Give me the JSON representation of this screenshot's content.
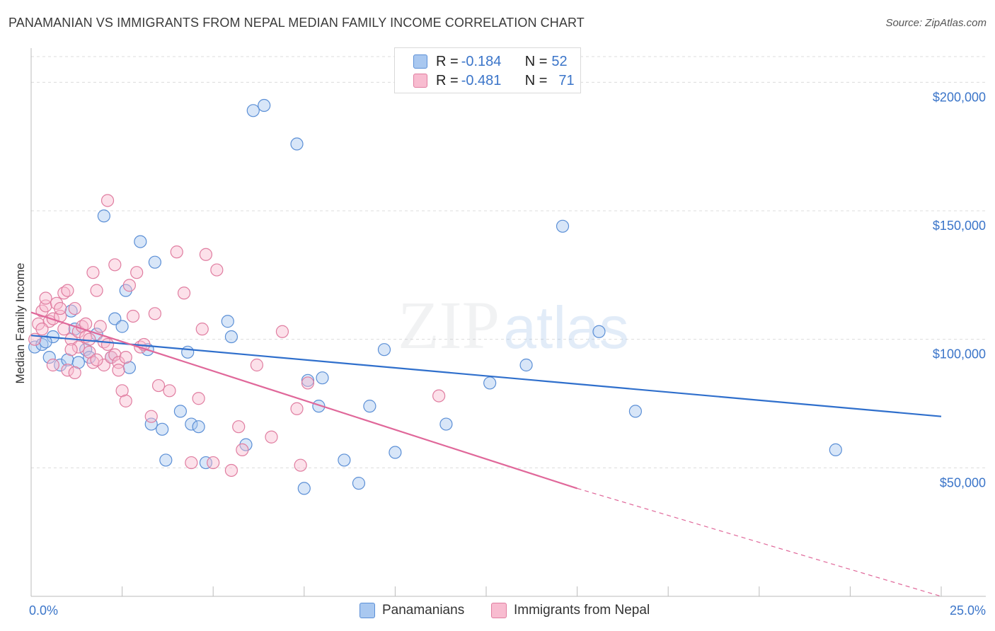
{
  "title": "PANAMANIAN VS IMMIGRANTS FROM NEPAL MEDIAN FAMILY INCOME CORRELATION CHART",
  "source": "Source: ZipAtlas.com",
  "watermark": {
    "zip": "ZIP",
    "atlas": "atlas"
  },
  "legend_box": {
    "rows": [
      {
        "r_label": "R = ",
        "r_value": "-0.184",
        "n_label": "N = ",
        "n_value": "52",
        "color": "#a9c8f0",
        "border": "#5b8fd6"
      },
      {
        "r_label": "R = ",
        "r_value": "-0.481",
        "n_label": "N = ",
        "n_value": "71",
        "color": "#f8bcd0",
        "border": "#e07da0"
      }
    ]
  },
  "bottom_legend": [
    {
      "label": "Panamanians",
      "color": "#a9c8f0",
      "border": "#5b8fd6"
    },
    {
      "label": "Immigrants from Nepal",
      "color": "#f8bcd0",
      "border": "#e07da0"
    }
  ],
  "chart_data": {
    "type": "scatter",
    "title": "PANAMANIAN VS IMMIGRANTS FROM NEPAL MEDIAN FAMILY INCOME CORRELATION CHART",
    "xlabel": "",
    "ylabel": "Median Family Income",
    "xlim": [
      0,
      25
    ],
    "ylim": [
      0,
      210000
    ],
    "x_tick_labels": [
      "0.0%",
      "25.0%"
    ],
    "y_ticks": [
      50000,
      100000,
      150000,
      200000
    ],
    "y_tick_labels": [
      "$50,000",
      "$100,000",
      "$150,000",
      "$200,000"
    ],
    "grid": true,
    "series": [
      {
        "name": "Panamanians",
        "color": "#5b8fd6",
        "fill": "rgba(169,200,240,0.45)",
        "trend": {
          "x": [
            0,
            25
          ],
          "y": [
            101500,
            70000
          ],
          "color": "#2f6fcc"
        },
        "points": [
          [
            0.1,
            97000
          ],
          [
            0.3,
            98000
          ],
          [
            0.5,
            93000
          ],
          [
            0.6,
            101000
          ],
          [
            0.8,
            90000
          ],
          [
            1.0,
            92000
          ],
          [
            1.1,
            111000
          ],
          [
            1.2,
            104000
          ],
          [
            1.3,
            91000
          ],
          [
            1.5,
            96000
          ],
          [
            1.6,
            93000
          ],
          [
            1.8,
            102000
          ],
          [
            2.0,
            148000
          ],
          [
            2.2,
            93000
          ],
          [
            2.3,
            108000
          ],
          [
            2.5,
            105000
          ],
          [
            2.6,
            119000
          ],
          [
            2.7,
            89000
          ],
          [
            3.0,
            138000
          ],
          [
            3.2,
            96000
          ],
          [
            3.3,
            67000
          ],
          [
            3.4,
            130000
          ],
          [
            3.6,
            65000
          ],
          [
            3.7,
            53000
          ],
          [
            4.1,
            72000
          ],
          [
            4.3,
            95000
          ],
          [
            4.4,
            67000
          ],
          [
            4.6,
            66000
          ],
          [
            4.8,
            52000
          ],
          [
            5.4,
            107000
          ],
          [
            5.5,
            101000
          ],
          [
            5.9,
            59000
          ],
          [
            6.1,
            189000
          ],
          [
            6.4,
            191000
          ],
          [
            7.3,
            176000
          ],
          [
            7.5,
            42000
          ],
          [
            7.6,
            84000
          ],
          [
            7.9,
            74000
          ],
          [
            8.0,
            85000
          ],
          [
            8.6,
            53000
          ],
          [
            9.0,
            44000
          ],
          [
            9.3,
            74000
          ],
          [
            9.7,
            96000
          ],
          [
            10.0,
            56000
          ],
          [
            11.4,
            67000
          ],
          [
            12.6,
            83000
          ],
          [
            13.6,
            90000
          ],
          [
            14.6,
            144000
          ],
          [
            15.6,
            103000
          ],
          [
            16.6,
            72000
          ],
          [
            22.1,
            57000
          ],
          [
            0.4,
            99000
          ]
        ]
      },
      {
        "name": "Immigrants from Nepal",
        "color": "#e07da0",
        "fill": "rgba(248,188,208,0.45)",
        "trend": {
          "x": [
            0,
            15
          ],
          "y": [
            110500,
            42000
          ],
          "color": "#e0689a"
        },
        "trend_dashed": {
          "x": [
            15,
            25
          ],
          "y": [
            42000,
            -4000
          ]
        },
        "points": [
          [
            0.1,
            100000
          ],
          [
            0.2,
            106000
          ],
          [
            0.3,
            111000
          ],
          [
            0.4,
            113000
          ],
          [
            0.4,
            116000
          ],
          [
            0.5,
            107000
          ],
          [
            0.6,
            108000
          ],
          [
            0.7,
            114000
          ],
          [
            0.8,
            109000
          ],
          [
            0.9,
            118000
          ],
          [
            1.0,
            119000
          ],
          [
            1.0,
            88000
          ],
          [
            1.1,
            100000
          ],
          [
            1.2,
            112000
          ],
          [
            1.2,
            87000
          ],
          [
            1.3,
            103000
          ],
          [
            1.3,
            97000
          ],
          [
            1.4,
            105000
          ],
          [
            1.5,
            101000
          ],
          [
            1.6,
            95000
          ],
          [
            1.7,
            126000
          ],
          [
            1.7,
            91000
          ],
          [
            1.8,
            119000
          ],
          [
            1.9,
            105000
          ],
          [
            2.0,
            99000
          ],
          [
            2.0,
            90000
          ],
          [
            2.1,
            154000
          ],
          [
            2.2,
            93000
          ],
          [
            2.3,
            129000
          ],
          [
            2.3,
            94000
          ],
          [
            2.4,
            91000
          ],
          [
            2.5,
            80000
          ],
          [
            2.6,
            76000
          ],
          [
            2.7,
            121000
          ],
          [
            2.8,
            109000
          ],
          [
            2.9,
            126000
          ],
          [
            3.0,
            97000
          ],
          [
            3.1,
            98000
          ],
          [
            3.3,
            70000
          ],
          [
            3.4,
            110000
          ],
          [
            3.5,
            82000
          ],
          [
            3.8,
            80000
          ],
          [
            4.0,
            134000
          ],
          [
            4.2,
            118000
          ],
          [
            4.4,
            52000
          ],
          [
            4.6,
            77000
          ],
          [
            4.7,
            104000
          ],
          [
            4.8,
            133000
          ],
          [
            5.0,
            52000
          ],
          [
            5.1,
            127000
          ],
          [
            5.5,
            49000
          ],
          [
            5.7,
            66000
          ],
          [
            5.8,
            57000
          ],
          [
            6.2,
            90000
          ],
          [
            6.6,
            62000
          ],
          [
            6.9,
            103000
          ],
          [
            7.4,
            51000
          ],
          [
            7.3,
            73000
          ],
          [
            7.6,
            83000
          ],
          [
            11.2,
            78000
          ],
          [
            0.9,
            104000
          ],
          [
            1.5,
            106000
          ],
          [
            2.1,
            98000
          ],
          [
            0.6,
            90000
          ],
          [
            1.8,
            92000
          ],
          [
            2.6,
            93000
          ],
          [
            0.3,
            104000
          ],
          [
            1.1,
            96000
          ],
          [
            2.4,
            88000
          ],
          [
            0.8,
            112000
          ],
          [
            1.6,
            100000
          ]
        ]
      }
    ]
  }
}
